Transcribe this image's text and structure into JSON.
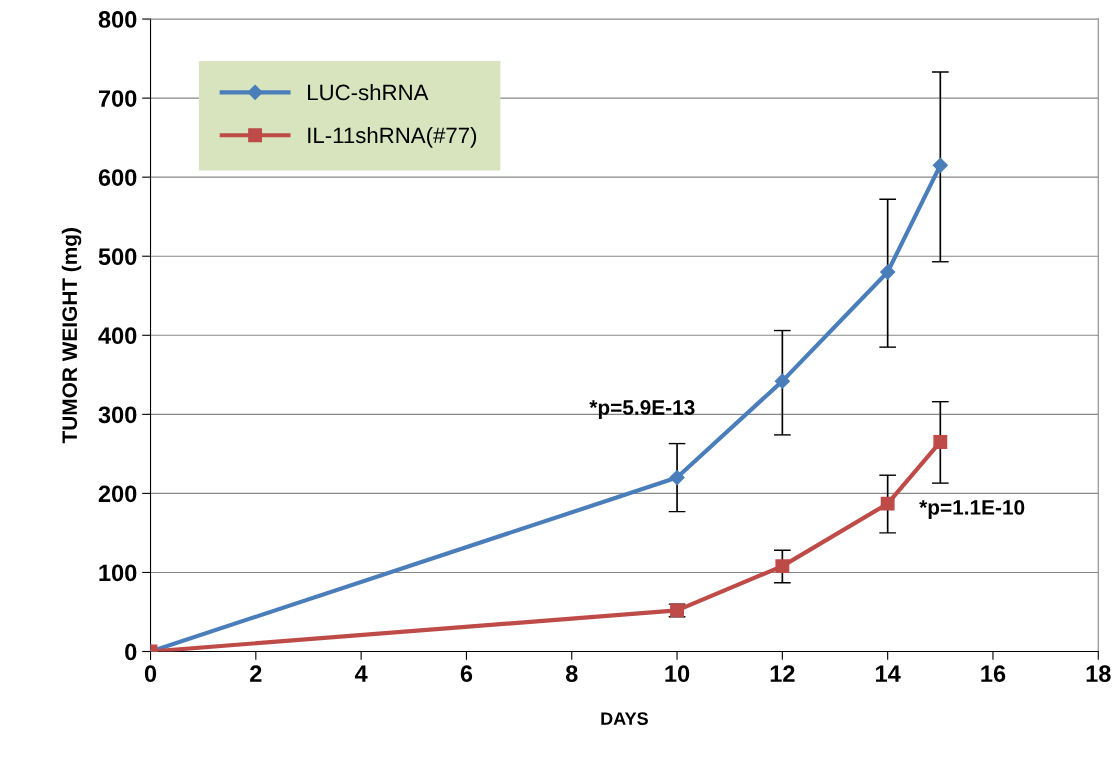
{
  "chart_data": {
    "type": "line",
    "xlabel": "DAYS",
    "ylabel": "TUMOR WEIGHT (mg)",
    "x": [
      0,
      10,
      12,
      14,
      15
    ],
    "series": [
      {
        "name": "LUC-shRNA",
        "color": "#4a7ebb",
        "marker": "diamond",
        "values": [
          0,
          220,
          342,
          480,
          615
        ],
        "errors": [
          null,
          [
            177,
            263
          ],
          [
            274,
            406
          ],
          [
            385,
            572
          ],
          [
            493,
            733
          ]
        ]
      },
      {
        "name": "IL-11shRNA(#77)",
        "color": "#be4b48",
        "marker": "square",
        "values": [
          0,
          52,
          108,
          187,
          265
        ],
        "errors": [
          null,
          [
            44,
            60
          ],
          [
            87,
            128
          ],
          [
            150,
            223
          ],
          [
            213,
            316
          ]
        ]
      }
    ],
    "annotations": [
      "*p=5.9E-13",
      "*p=1.1E-10"
    ],
    "xlim": [
      0,
      18
    ],
    "xticks": [
      0,
      2,
      4,
      6,
      8,
      10,
      12,
      14,
      16,
      18
    ],
    "ylim": [
      0,
      800
    ],
    "yticks": [
      0,
      100,
      200,
      300,
      400,
      500,
      600,
      700,
      800
    ],
    "grid": "y",
    "legend": "top left",
    "line_style": "solid"
  }
}
